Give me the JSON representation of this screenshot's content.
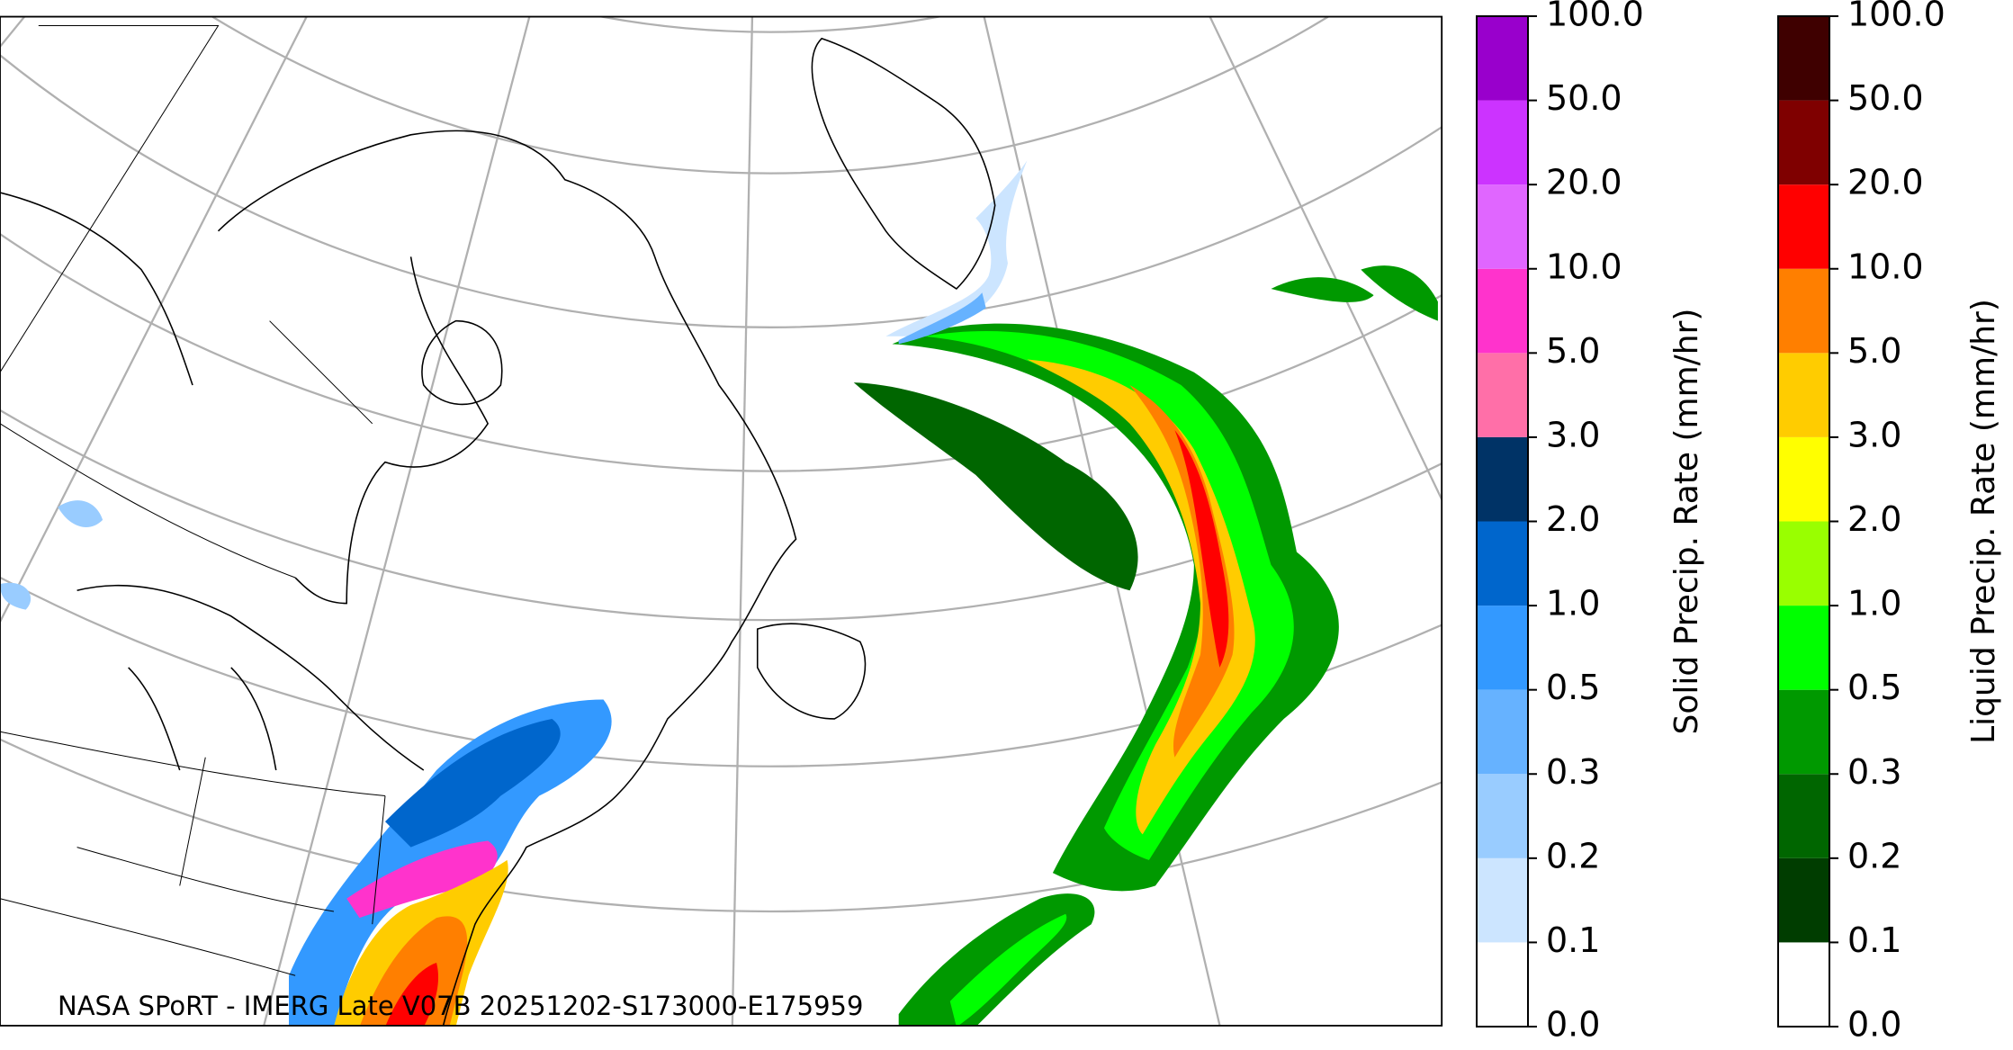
{
  "annotation": "NASA SPoRT - IMERG Late V07B 20251202-S173000-E175959",
  "colorbars": [
    {
      "label": "Solid Precip. Rate (mm/hr)",
      "colors": [
        "#ffffff",
        "#cce5ff",
        "#99ccff",
        "#66b2ff",
        "#3399ff",
        "#0066cc",
        "#003366",
        "#ff6fa8",
        "#ff33cc",
        "#e066ff",
        "#cc33ff",
        "#9900cc"
      ],
      "ticks": [
        {
          "value": 0,
          "label": "0.0"
        },
        {
          "value": 0.1,
          "label": "0.1"
        },
        {
          "value": 0.2,
          "label": "0.2"
        },
        {
          "value": 0.3,
          "label": "0.3"
        },
        {
          "value": 0.5,
          "label": "0.5"
        },
        {
          "value": 1,
          "label": "1.0"
        },
        {
          "value": 2,
          "label": "2.0"
        },
        {
          "value": 3,
          "label": "3.0"
        },
        {
          "value": 5,
          "label": "5.0"
        },
        {
          "value": 10,
          "label": "10.0"
        },
        {
          "value": 20,
          "label": "20.0"
        },
        {
          "value": 50,
          "label": "50.0"
        },
        {
          "value": 100,
          "label": "100.0"
        }
      ]
    },
    {
      "label": "Liquid Precip. Rate (mm/hr)",
      "colors": [
        "#ffffff",
        "#003d00",
        "#006600",
        "#009900",
        "#00ff00",
        "#99ff00",
        "#ffff00",
        "#ffcc00",
        "#ff7f00",
        "#ff0000",
        "#7f0000",
        "#3f0000"
      ],
      "ticks": [
        {
          "value": 0,
          "label": "0.0"
        },
        {
          "value": 0.1,
          "label": "0.1"
        },
        {
          "value": 0.2,
          "label": "0.2"
        },
        {
          "value": 0.3,
          "label": "0.3"
        },
        {
          "value": 0.5,
          "label": "0.5"
        },
        {
          "value": 1,
          "label": "1.0"
        },
        {
          "value": 2,
          "label": "2.0"
        },
        {
          "value": 3,
          "label": "3.0"
        },
        {
          "value": 5,
          "label": "5.0"
        },
        {
          "value": 10,
          "label": "10.0"
        },
        {
          "value": 20,
          "label": "20.0"
        },
        {
          "value": 50,
          "label": "50.0"
        },
        {
          "value": 100,
          "label": "100.0"
        }
      ]
    }
  ]
}
